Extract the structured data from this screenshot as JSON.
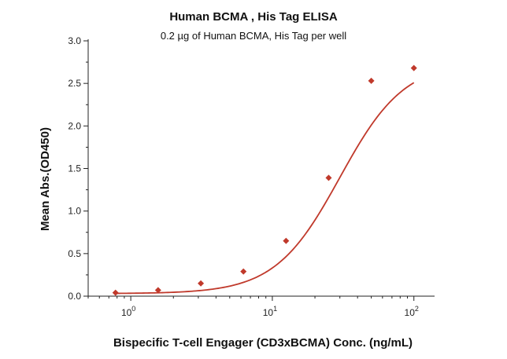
{
  "chart_data": {
    "type": "scatter",
    "title": "Human BCMA , His Tag ELISA",
    "subtitle": "0.2 µg of Human BCMA, His Tag per well",
    "xlabel": "Bispecific T-cell Engager (CD3xBCMA) Conc. (ng/mL)",
    "ylabel": "Mean Abs.(OD450)",
    "x_scale": "log",
    "xlim": [
      0.5,
      140
    ],
    "ylim": [
      0,
      3.0
    ],
    "y_ticks": [
      {
        "value": 0.0,
        "label": "0.0"
      },
      {
        "value": 0.5,
        "label": "0.5"
      },
      {
        "value": 1.0,
        "label": "1.0"
      },
      {
        "value": 1.5,
        "label": "1.5"
      },
      {
        "value": 2.0,
        "label": "2.0"
      },
      {
        "value": 2.5,
        "label": "2.5"
      },
      {
        "value": 3.0,
        "label": "3.0"
      }
    ],
    "x_ticks": [
      {
        "value": 1,
        "base": "10",
        "exp": "0"
      },
      {
        "value": 10,
        "base": "10",
        "exp": "1"
      },
      {
        "value": 100,
        "base": "10",
        "exp": "2"
      }
    ],
    "series": [
      {
        "name": "Human BCMA, His Tag",
        "color": "#c0392b",
        "marker": "diamond",
        "x": [
          0.78,
          1.56,
          3.125,
          6.25,
          12.5,
          25,
          50,
          100
        ],
        "y": [
          0.04,
          0.07,
          0.15,
          0.29,
          0.65,
          1.39,
          2.53,
          2.68
        ]
      }
    ],
    "fit": {
      "type": "4PL",
      "color": "#c0392b",
      "bottom": 0.03,
      "top": 2.76,
      "ec50": 30,
      "hill": 1.9
    },
    "grid": false
  }
}
